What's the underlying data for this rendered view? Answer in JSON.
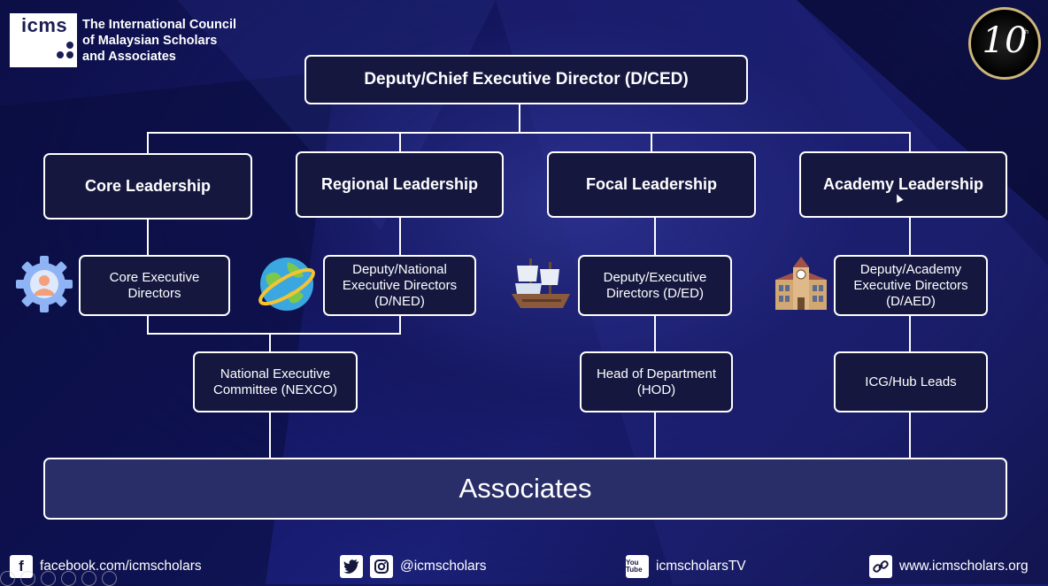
{
  "header": {
    "logo_text": "icms",
    "org_name_lines": [
      "The International Council",
      "of Malaysian Scholars",
      "and Associates"
    ],
    "anniversary_number": "10",
    "anniversary_suffix": "th"
  },
  "chart": {
    "root": "Deputy/Chief Executive Director (D/CED)",
    "branches": [
      {
        "title": "Core Leadership",
        "sub": "Core Executive Directors",
        "icon": "gear-person-icon"
      },
      {
        "title": "Regional Leadership",
        "sub": "Deputy/National Executive Directors (D/NED)",
        "icon": "globe-icon"
      },
      {
        "title": "Focal Leadership",
        "sub": "Deputy/Executive Directors (D/ED)",
        "icon": "ship-icon",
        "sub2": "Head of Department (HOD)"
      },
      {
        "title": "Academy Leadership",
        "sub": "Deputy/Academy Executive Directors (D/AED)",
        "icon": "academy-building-icon",
        "sub2": "ICG/Hub Leads"
      }
    ],
    "nexco": "National Executive Committee (NEXCO)",
    "associates": "Associates"
  },
  "footer": {
    "facebook": "facebook.com/icmscholars",
    "social": "@icmscholars",
    "youtube": "icmscholarsTV",
    "website": "www.icmscholars.org",
    "youtube_icon_text": "You Tube",
    "facebook_icon_text": "f"
  },
  "colors": {
    "background": "#14186a",
    "box_fill": "#15173f",
    "associates_fill": "#2a2e68"
  }
}
